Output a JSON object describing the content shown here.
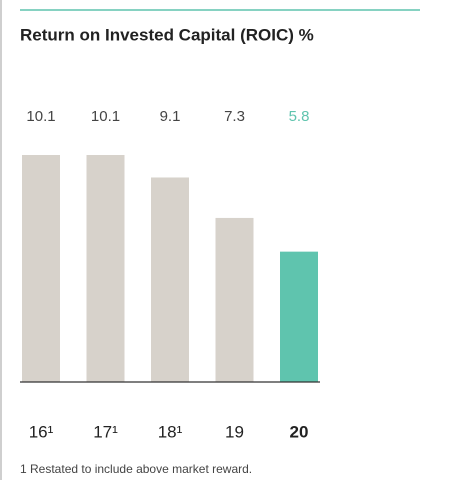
{
  "chart_data": {
    "type": "bar",
    "title": "Return on Invested Capital (ROIC) %",
    "categories": [
      "16¹",
      "17¹",
      "18¹",
      "19",
      "20"
    ],
    "values": [
      10.1,
      10.1,
      9.1,
      7.3,
      5.8
    ],
    "colors": [
      "#d7d2cb",
      "#d7d2cb",
      "#d7d2cb",
      "#d7d2cb",
      "#5fc4ae"
    ],
    "highlight_index": 4,
    "footnote": "1 Restated to include above market reward."
  }
}
